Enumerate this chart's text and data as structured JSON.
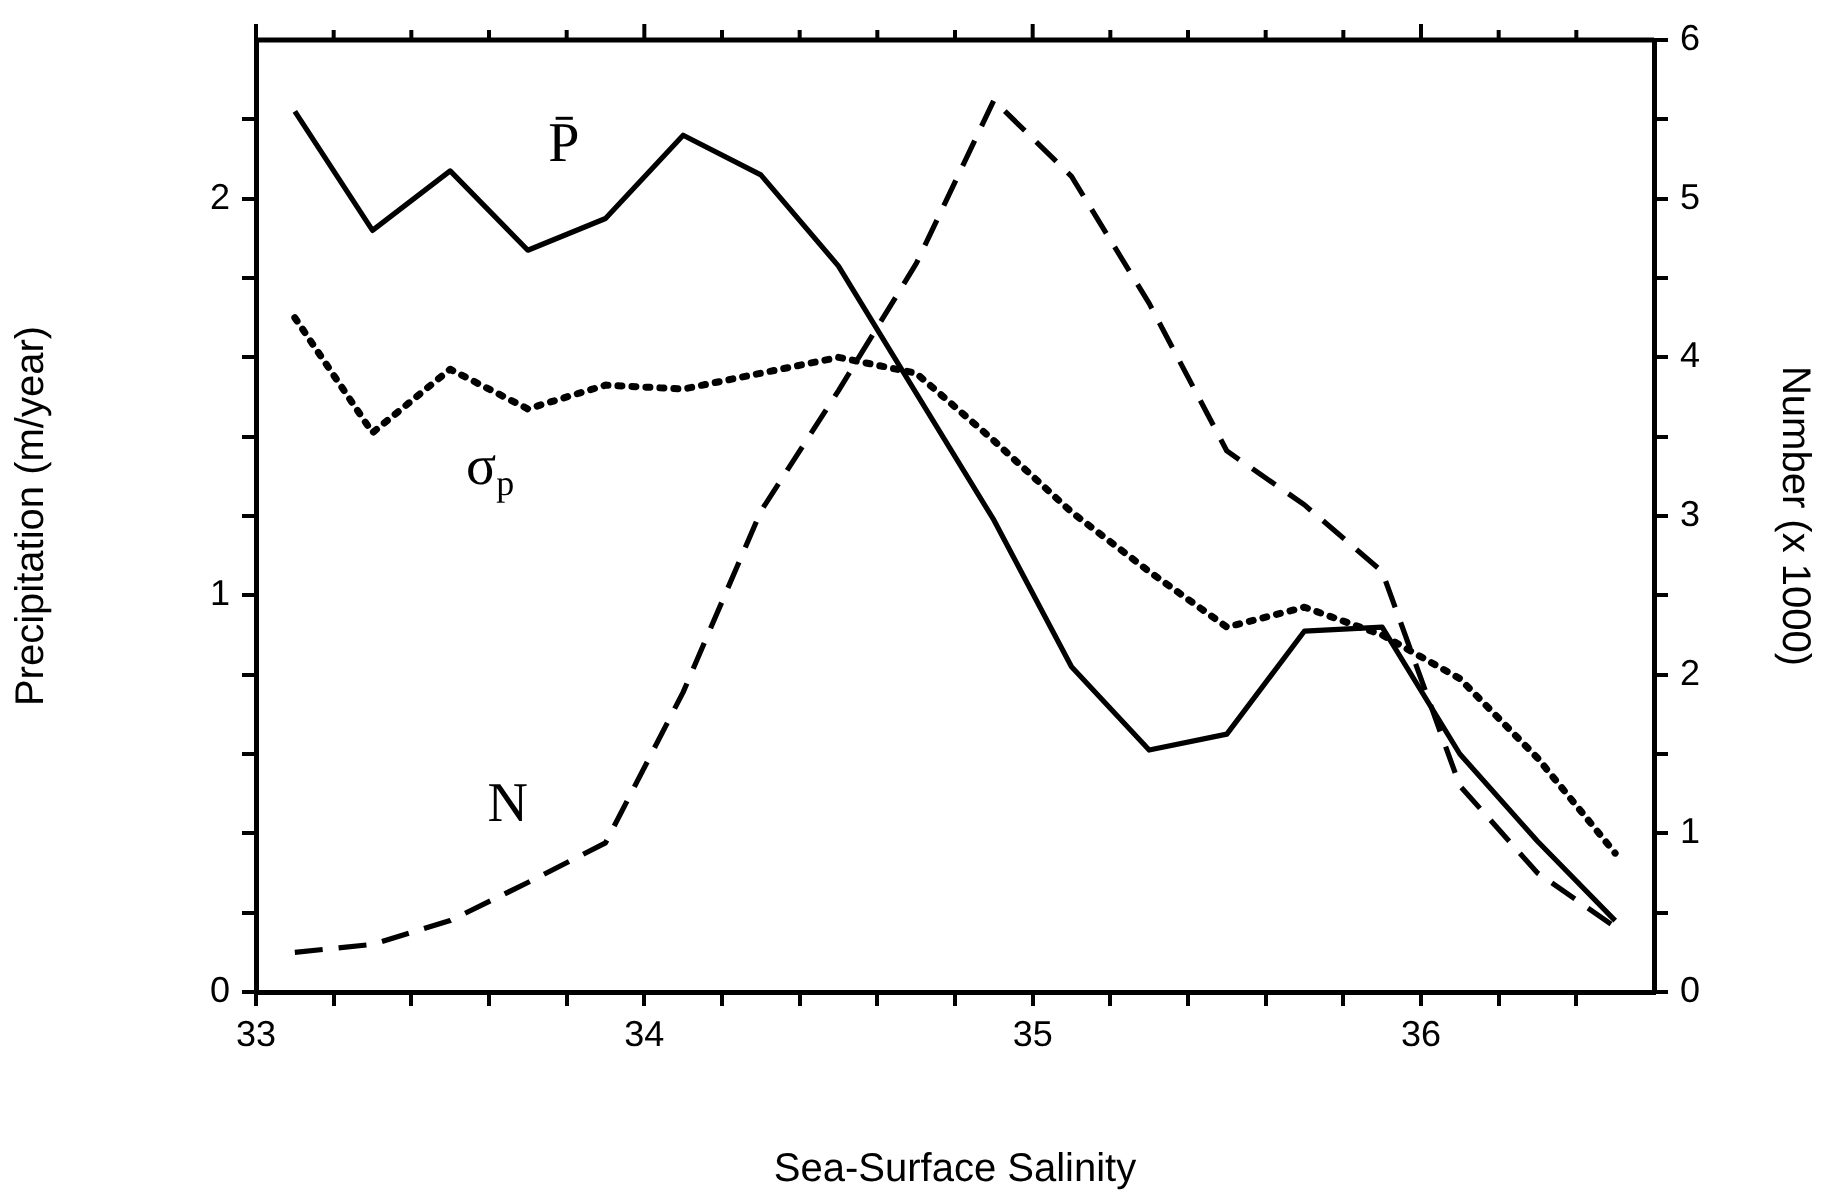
{
  "chart_data": {
    "type": "line",
    "xlabel": "Sea-Surface Salinity",
    "ylabel": "Precipitation (m/year)",
    "y2label": "Number (x 1000)",
    "x": [
      33.1,
      33.3,
      33.5,
      33.7,
      33.9,
      34.1,
      34.3,
      34.5,
      34.7,
      34.9,
      35.1,
      35.3,
      35.5,
      35.7,
      35.9,
      36.1,
      36.3,
      36.5
    ],
    "series": [
      {
        "name": "P̄",
        "color": "#000000",
        "line_style": "solid",
        "values": [
          2.22,
          1.92,
          2.07,
          1.87,
          1.95,
          2.16,
          2.06,
          1.83,
          1.51,
          1.19,
          0.82,
          0.61,
          0.65,
          0.91,
          0.92,
          0.6,
          0.38,
          0.18
        ]
      },
      {
        "name": "σ$_{p}$",
        "color": "#000000",
        "line_style": "dotted",
        "values": [
          1.7,
          1.41,
          1.57,
          1.47,
          1.53,
          1.52,
          1.56,
          1.6,
          1.56,
          1.39,
          1.21,
          1.06,
          0.92,
          0.97,
          0.9,
          0.79,
          0.59,
          0.35
        ]
      },
      {
        "name": "N",
        "color": "#000000",
        "line_style": "dashed",
        "axis": "y2",
        "values": [
          0.25,
          0.3,
          0.45,
          0.69,
          0.94,
          1.89,
          3.03,
          3.79,
          4.59,
          5.62,
          5.14,
          4.34,
          3.41,
          3.07,
          2.65,
          1.3,
          0.75,
          0.41
        ]
      }
    ],
    "xlim": [
      33,
      36.6
    ],
    "xticks": [
      33,
      {
        "value": 33.2,
        "label": null
      },
      {
        "value": 33.4,
        "label": null
      },
      {
        "value": 33.6,
        "label": null
      },
      {
        "value": 33.8,
        "label": null
      },
      34,
      {
        "value": 34.2,
        "label": null
      },
      {
        "value": 34.4,
        "label": null
      },
      {
        "value": 34.6,
        "label": null
      },
      {
        "value": 34.8,
        "label": null
      },
      35,
      {
        "value": 35.2,
        "label": null
      },
      {
        "value": 35.4,
        "label": null
      },
      {
        "value": 35.6,
        "label": null
      },
      {
        "value": 35.8,
        "label": null
      },
      36,
      {
        "value": 36.2,
        "label": null
      },
      {
        "value": 36.4,
        "label": null
      }
    ],
    "ylim": [
      0,
      2.4
    ],
    "yticks": [
      0,
      {
        "value": 0.2,
        "label": null
      },
      {
        "value": 0.4,
        "label": null
      },
      {
        "value": 0.6,
        "label": null
      },
      {
        "value": 0.8,
        "label": null
      },
      1,
      {
        "value": 1.2,
        "label": null
      },
      {
        "value": 1.4,
        "label": null
      },
      {
        "value": 1.6,
        "label": null
      },
      {
        "value": 1.8,
        "label": null
      },
      2,
      {
        "value": 2.2,
        "label": null
      }
    ],
    "y2lim": [
      0,
      6
    ],
    "y2ticks": [
      0,
      {
        "value": 0.5,
        "label": null
      },
      1,
      {
        "value": 1.5,
        "label": null
      },
      2,
      {
        "value": 2.5,
        "label": null
      },
      3,
      {
        "value": 3.5,
        "label": null
      },
      4,
      {
        "value": 4.5,
        "label": null
      },
      5,
      {
        "value": 5.5,
        "label": null
      },
      6
    ],
    "marker": "none",
    "legend": false,
    "grid": false
  }
}
